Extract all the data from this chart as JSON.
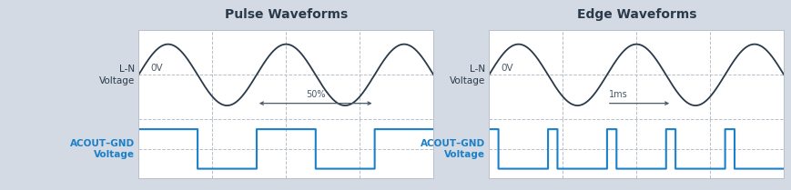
{
  "bg_color": "#d4dae4",
  "panel_bg": "#ffffff",
  "grid_color": "#b8c0cc",
  "sine_color": "#2a3a4a",
  "pulse_color": "#1a80c8",
  "label_color_blue": "#1a80c8",
  "label_color_dark": "#2a3a4a",
  "annotation_color": "#4a5a6a",
  "title1": "Pulse Waveforms",
  "title2": "Edge Waveforms",
  "ov_label": "0V",
  "pulse_annotation": "50%",
  "edge_annotation": "1ms"
}
